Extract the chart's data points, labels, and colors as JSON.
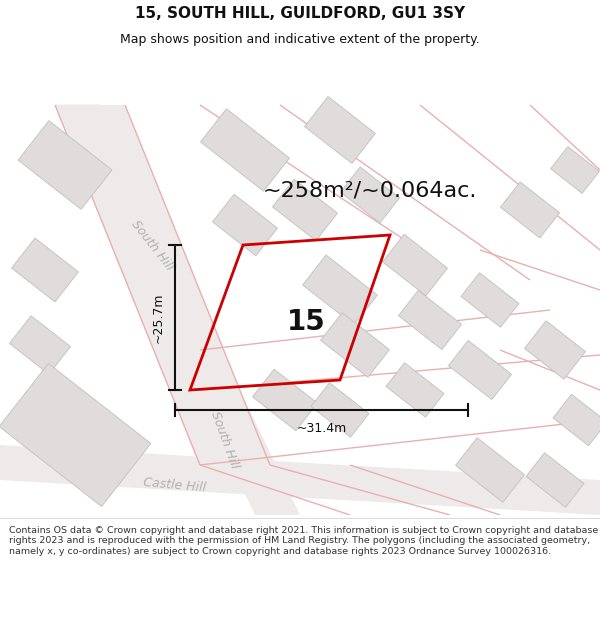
{
  "title": "15, SOUTH HILL, GUILDFORD, GU1 3SY",
  "subtitle": "Map shows position and indicative extent of the property.",
  "area_text": "~258m²/~0.064ac.",
  "width_label": "~31.4m",
  "height_label": "~25.7m",
  "number_label": "15",
  "footer": "Contains OS data © Crown copyright and database right 2021. This information is subject to Crown copyright and database rights 2023 and is reproduced with the permission of HM Land Registry. The polygons (including the associated geometry, namely x, y co-ordinates) are subject to Crown copyright and database rights 2023 Ordnance Survey 100026316.",
  "bg_color": "#ffffff",
  "map_bg": "#f8f8f8",
  "road_line_color": "#e8b0b0",
  "road_fill_color": "#f0e8e8",
  "building_color": "#e0dcdc",
  "building_edge": "#c8c4c4",
  "plot_color": "none",
  "plot_edge": "#cc0000",
  "road_label_color": "#b0b0b0",
  "title_color": "#111111",
  "dim_color": "#111111",
  "number_color": "#111111",
  "area_color": "#111111",
  "title_fontsize": 11,
  "subtitle_fontsize": 9,
  "area_fontsize": 16,
  "dim_fontsize": 9,
  "road_label_fontsize": 9,
  "number_fontsize": 20,
  "footer_fontsize": 6.8
}
